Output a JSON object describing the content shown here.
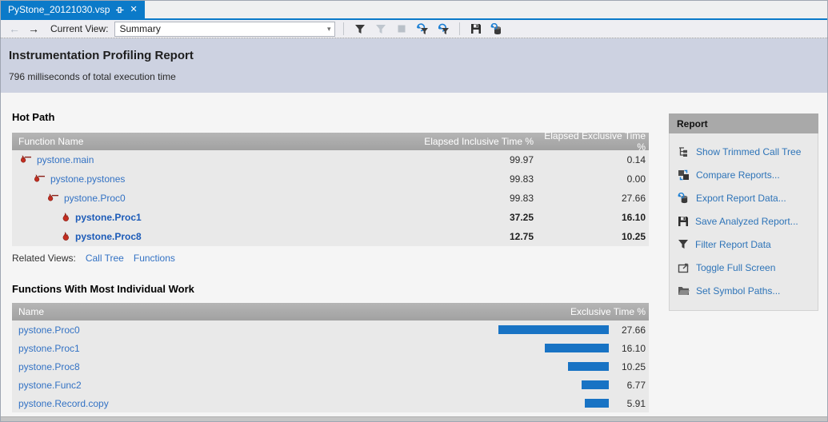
{
  "tab": {
    "title": "PyStone_20121030.vsp"
  },
  "glyphs": {
    "close": "✕",
    "back": "←",
    "forward": "→",
    "dropdown": "▾"
  },
  "toolbar": {
    "current_view_label": "Current View:",
    "view_value": "Summary"
  },
  "header": {
    "title": "Instrumentation Profiling Report",
    "subtitle": "796 milliseconds of total execution time"
  },
  "hot_path": {
    "title": "Hot Path",
    "columns": [
      "Function Name",
      "Elapsed Inclusive Time %",
      "Elapsed Exclusive Time %"
    ],
    "rows": [
      {
        "name": "pystone.main",
        "inclusive": "99.97",
        "exclusive": "0.14"
      },
      {
        "name": "pystone.pystones",
        "inclusive": "99.83",
        "exclusive": "0.00"
      },
      {
        "name": "pystone.Proc0",
        "inclusive": "99.83",
        "exclusive": "27.66"
      },
      {
        "name": "pystone.Proc1",
        "inclusive": "37.25",
        "exclusive": "16.10"
      },
      {
        "name": "pystone.Proc8",
        "inclusive": "12.75",
        "exclusive": "10.25"
      }
    ],
    "related_views_label": "Related Views:",
    "related_views": [
      "Call Tree",
      "Functions"
    ]
  },
  "functions_work": {
    "title": "Functions With Most Individual Work",
    "columns": [
      "Name",
      "Exclusive Time %"
    ],
    "rows": [
      {
        "name": "pystone.Proc0",
        "value": 27.66,
        "display": "27.66"
      },
      {
        "name": "pystone.Proc1",
        "value": 16.1,
        "display": "16.10"
      },
      {
        "name": "pystone.Proc8",
        "value": 10.25,
        "display": "10.25"
      },
      {
        "name": "pystone.Func2",
        "value": 6.77,
        "display": "6.77"
      },
      {
        "name": "pystone.Record.copy",
        "value": 5.91,
        "display": "5.91"
      }
    ]
  },
  "report_panel": {
    "title": "Report",
    "items": [
      {
        "label": "Show Trimmed Call Tree"
      },
      {
        "label": "Compare Reports..."
      },
      {
        "label": "Export Report Data..."
      },
      {
        "label": "Save Analyzed Report..."
      },
      {
        "label": "Filter Report Data"
      },
      {
        "label": "Toggle Full Screen"
      },
      {
        "label": "Set Symbol Paths..."
      }
    ]
  },
  "colors": {
    "accent_blue": "#0B7AC9",
    "bar_blue": "#1873C4",
    "link_blue": "#3372C4",
    "flame_red": "#C52E21"
  },
  "chart_data": {
    "type": "bar",
    "orientation": "horizontal",
    "title": "Functions With Most Individual Work",
    "categories": [
      "pystone.Proc0",
      "pystone.Proc1",
      "pystone.Proc8",
      "pystone.Func2",
      "pystone.Record.copy"
    ],
    "values": [
      27.66,
      16.1,
      10.25,
      6.77,
      5.91
    ],
    "xlabel": "Exclusive Time %",
    "xlim": [
      0,
      30
    ],
    "legend": false
  }
}
